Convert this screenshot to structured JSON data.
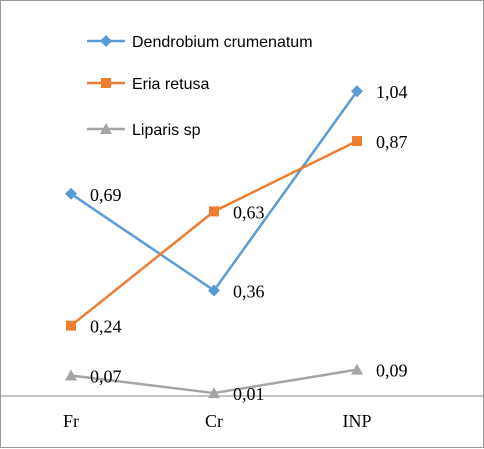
{
  "chart_data": {
    "type": "line",
    "categories": [
      "Fr",
      "Cr",
      "INP"
    ],
    "ylim": [
      0,
      1.15
    ],
    "grid": false,
    "legend": "top",
    "series": [
      {
        "name": "Dendrobium crumenatum",
        "values": [
          0.69,
          0.36,
          1.04
        ],
        "labels": [
          "0,69",
          "0,36",
          "1,04"
        ],
        "color": "#5B9BD5",
        "marker": "diamond"
      },
      {
        "name": "Eria retusa",
        "values": [
          0.24,
          0.63,
          0.87
        ],
        "labels": [
          "0,24",
          "0,63",
          "0,87"
        ],
        "color": "#ED7D31",
        "marker": "square"
      },
      {
        "name": "Liparis sp",
        "values": [
          0.07,
          0.01,
          0.09
        ],
        "labels": [
          "0,07",
          "0,01",
          "0,09"
        ],
        "color": "#A5A5A5",
        "marker": "triangle"
      }
    ]
  }
}
